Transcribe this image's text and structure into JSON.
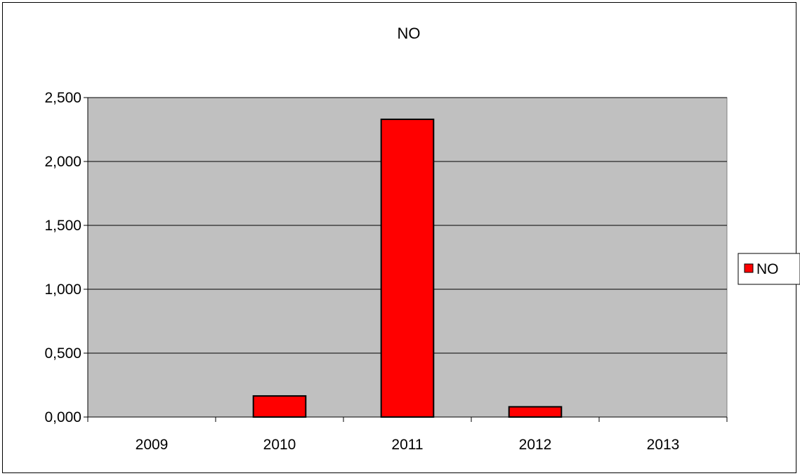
{
  "chart_data": {
    "type": "bar",
    "title": "NO",
    "xlabel": "",
    "ylabel": "",
    "categories": [
      "2009",
      "2010",
      "2011",
      "2012",
      "2013"
    ],
    "series": [
      {
        "name": "NO",
        "values": [
          0,
          0.165,
          2.33,
          0.08,
          0
        ]
      }
    ],
    "ylim": [
      0,
      2.5
    ],
    "yticks": [
      0,
      0.5,
      1,
      1.5,
      2,
      2.5
    ],
    "ytick_labels": [
      "0,000",
      "0,500",
      "1,000",
      "1,500",
      "2,000",
      "2,500"
    ],
    "grid": true,
    "legend": "right",
    "colors": {
      "bar_fill": "#ff0000",
      "bar_stroke": "#000000",
      "plot_background": "#c0c0c0",
      "gridline": "#000000"
    }
  }
}
